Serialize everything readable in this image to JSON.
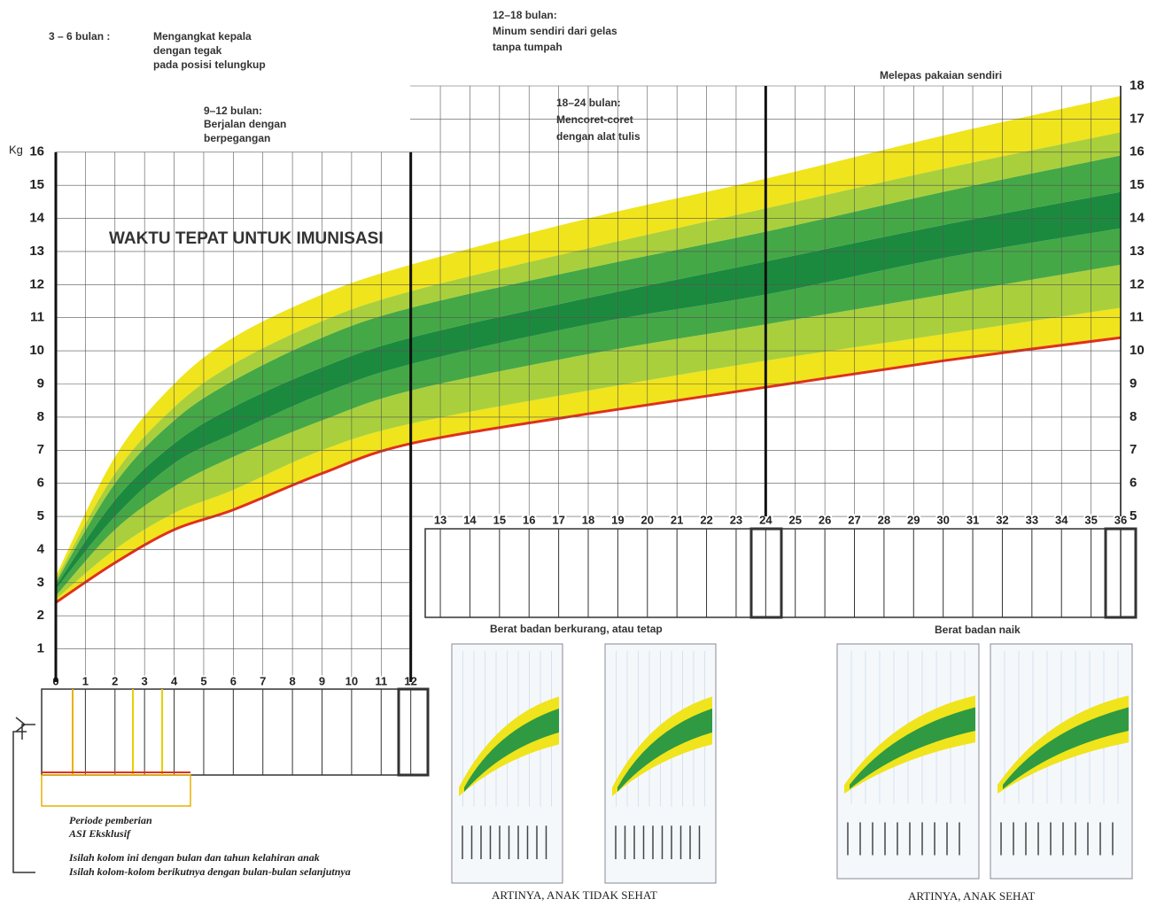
{
  "chart_data": {
    "type": "band",
    "title": "WAKTU TEPAT UNTUK IMUNISASI",
    "ylabel": "Kg",
    "x": [
      0,
      2,
      4,
      6,
      9,
      12,
      18,
      24,
      30,
      36
    ],
    "series": [
      {
        "color": "#f0e41c",
        "line_color": "#e0301e",
        "values": [
          2.4,
          3.6,
          4.6,
          5.2,
          6.3,
          7.2,
          8.1,
          8.9,
          9.7,
          10.4
        ]
      },
      {
        "color": "#a9d03c",
        "values": [
          2.5,
          4.0,
          5.1,
          5.8,
          7.0,
          7.8,
          8.8,
          9.7,
          10.5,
          11.3
        ]
      },
      {
        "color": "#45a846",
        "values": [
          2.6,
          4.6,
          5.9,
          6.8,
          7.9,
          8.8,
          9.9,
          10.8,
          11.7,
          12.6
        ]
      },
      {
        "color": "#1c8a3e",
        "values": [
          2.8,
          5.0,
          6.6,
          7.5,
          8.7,
          9.6,
          10.8,
          11.7,
          12.8,
          13.7
        ]
      },
      {
        "color": "#45a846",
        "values": [
          2.9,
          5.5,
          7.2,
          8.3,
          9.5,
          10.4,
          11.6,
          12.7,
          13.8,
          14.8
        ]
      },
      {
        "color": "#a9d03c",
        "values": [
          3.0,
          6.0,
          7.9,
          9.1,
          10.4,
          11.3,
          12.5,
          13.6,
          14.8,
          15.9
        ]
      },
      {
        "color": "#f0e41c",
        "values": [
          3.1,
          6.3,
          8.3,
          9.6,
          10.9,
          11.8,
          13.1,
          14.3,
          15.5,
          16.6
        ]
      },
      {
        "values": [
          3.2,
          6.8,
          9.0,
          10.4,
          11.7,
          12.6,
          14.0,
          15.2,
          16.5,
          17.7
        ]
      }
    ],
    "xlim": [
      0,
      36
    ],
    "xticks": [
      0,
      1,
      2,
      3,
      4,
      5,
      6,
      7,
      8,
      9,
      10,
      11,
      12,
      13,
      14,
      15,
      16,
      17,
      18,
      19,
      20,
      21,
      22,
      23,
      24,
      25,
      26,
      27,
      28,
      29,
      30,
      31,
      32,
      33,
      34,
      35,
      36
    ],
    "ylim": [
      0,
      18
    ],
    "yticks": [
      1,
      2,
      3,
      4,
      5,
      6,
      7,
      8,
      9,
      10,
      11,
      12,
      13,
      14,
      15,
      16
    ],
    "y2lim": [
      0,
      18
    ],
    "y2ticks": [
      5,
      6,
      7,
      8,
      9,
      10,
      11,
      12,
      13,
      14,
      15,
      16,
      17,
      18
    ],
    "grid": true,
    "annotations": [
      "3 – 6 bulan :",
      "Mengangkat kepala",
      "dengan tegak",
      "pada posisi telungkup",
      "9–12 bulan:",
      "Berjalan dengan",
      "berpegangan",
      "12–18 bulan:",
      "Minum sendiri dari gelas",
      "tanpa tumpah",
      "18–24 bulan:",
      "Mencoret-coret",
      "dengan alat tulis",
      "Melepas pakaian sendiri",
      "Berat badan berkurang, atau tetap",
      "Berat badan naik",
      "Periode pemberian",
      "ASI Eksklusif",
      "Isilah kolom ini dengan bulan dan tahun kelahiran anak",
      "Isilah kolom-kolom berikutnya dengan bulan-bulan selanjutnya",
      "ARTINYA, ANAK TIDAK SEHAT",
      "ARTINYA, ANAK SEHAT"
    ]
  }
}
